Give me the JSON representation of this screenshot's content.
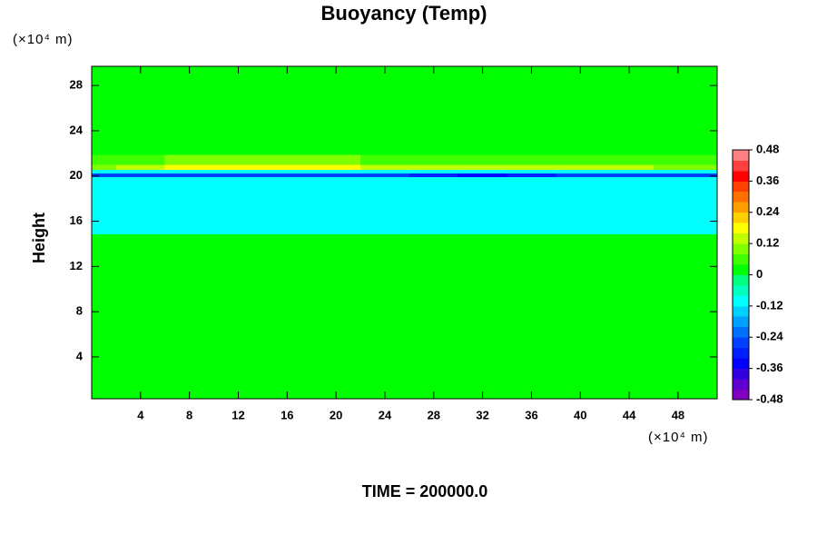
{
  "chart_data": {
    "type": "contour",
    "title": "Buoyancy (Temp)",
    "y_unit": "(×10⁴ m)",
    "x_unit": "(×10⁴ m)",
    "ylabel": "Height",
    "footer": "TIME = 200000.0",
    "xlim": [
      0,
      51.2
    ],
    "ylim": [
      0.3,
      29.7
    ],
    "xticks": [
      4,
      8,
      12,
      16,
      20,
      24,
      28,
      32,
      36,
      40,
      44,
      48
    ],
    "yticks": [
      4,
      8,
      12,
      16,
      20,
      24,
      28
    ],
    "x": [
      0,
      4,
      8,
      12,
      16,
      20,
      24,
      28,
      32,
      36,
      40,
      44,
      48
    ],
    "y": [
      10,
      19.8,
      20.1,
      20.4,
      20.8,
      21.3,
      22.5,
      26
    ],
    "z": [
      [
        0,
        0,
        0,
        0,
        0,
        0,
        0,
        0,
        0,
        0,
        0,
        0,
        0
      ],
      [
        -0.12,
        -0.12,
        -0.12,
        -0.12,
        -0.12,
        -0.12,
        -0.12,
        -0.12,
        -0.12,
        -0.12,
        -0.12,
        -0.12,
        -0.12
      ],
      [
        -0.28,
        -0.28,
        -0.28,
        -0.28,
        -0.28,
        -0.28,
        -0.28,
        -0.32,
        -0.36,
        -0.32,
        -0.28,
        -0.28,
        -0.28
      ],
      [
        -0.12,
        -0.12,
        -0.12,
        -0.12,
        -0.12,
        -0.12,
        -0.12,
        -0.12,
        -0.12,
        -0.12,
        -0.12,
        -0.12,
        -0.12
      ],
      [
        0.08,
        0.12,
        0.16,
        0.16,
        0.16,
        0.16,
        0.12,
        0.12,
        0.12,
        0.12,
        0.12,
        0.12,
        0.08
      ],
      [
        0.04,
        0.04,
        0.08,
        0.08,
        0.08,
        0.08,
        0.04,
        0.04,
        0.04,
        0.04,
        0.04,
        0.04,
        0.04
      ],
      [
        0,
        0,
        0,
        0,
        0,
        0,
        0,
        0,
        0,
        0,
        0,
        0,
        0
      ],
      [
        0,
        0,
        0,
        0,
        0,
        0,
        0,
        0,
        0,
        0,
        0,
        0,
        0
      ]
    ],
    "clim": [
      -0.48,
      0.48
    ],
    "colorscale": [
      "#7f00bf",
      "#6000d0",
      "#3000e0",
      "#0000ff",
      "#0020ff",
      "#0040ff",
      "#0070ff",
      "#00a0ff",
      "#00d0ff",
      "#00ffff",
      "#00ffc0",
      "#00ff80",
      "#00ff00",
      "#40ff00",
      "#80ff00",
      "#c0ff00",
      "#ffff00",
      "#ffd000",
      "#ffa000",
      "#ff7000",
      "#ff4000",
      "#ff0000",
      "#ff4040",
      "#ff8080"
    ],
    "colorbar_ticks": [
      0.48,
      0.36,
      0.24,
      0.12,
      0,
      -0.12,
      -0.24,
      -0.36,
      -0.48
    ]
  }
}
